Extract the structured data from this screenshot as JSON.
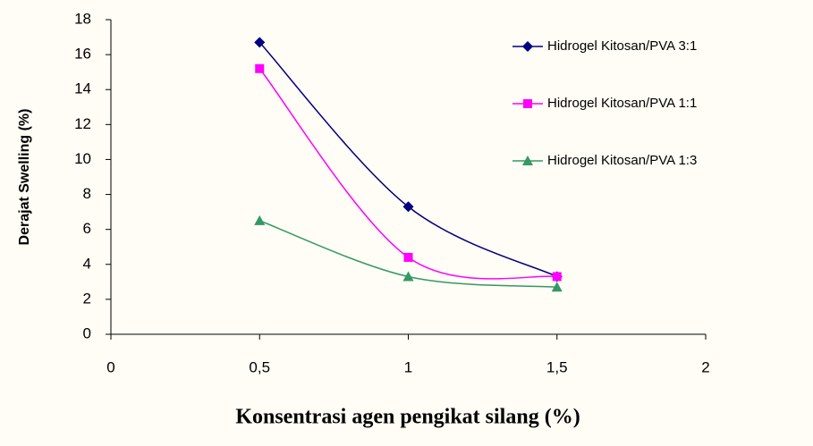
{
  "chart_data": {
    "type": "line",
    "x_label": "Konsentrasi agen pengikat silang (%)",
    "y_label": "Derajat Swelling (%)",
    "x": [
      0.5,
      1,
      1.5
    ],
    "series": [
      {
        "name": "Hidrogel Kitosan/PVA 3:1",
        "color": "#000080",
        "marker": "diamond",
        "values": [
          16.7,
          7.3,
          3.3
        ]
      },
      {
        "name": "Hidrogel Kitosan/PVA 1:1",
        "color": "#ff00ff",
        "marker": "square",
        "values": [
          15.2,
          4.4,
          3.3
        ]
      },
      {
        "name": "Hidrogel Kitosan/PVA 1:3",
        "color": "#339966",
        "marker": "triangle",
        "values": [
          6.5,
          3.3,
          2.7
        ]
      }
    ],
    "xlim": [
      0,
      2
    ],
    "xticks": [
      0,
      {
        "value": 0.5,
        "label": "0,5"
      },
      1,
      {
        "value": 1.5,
        "label": "1,5"
      },
      2
    ],
    "ylim": [
      0,
      18
    ],
    "yticks": [
      0,
      2,
      4,
      6,
      8,
      10,
      12,
      14,
      16,
      18
    ],
    "smooth": true,
    "grid": false,
    "legend": "right"
  }
}
